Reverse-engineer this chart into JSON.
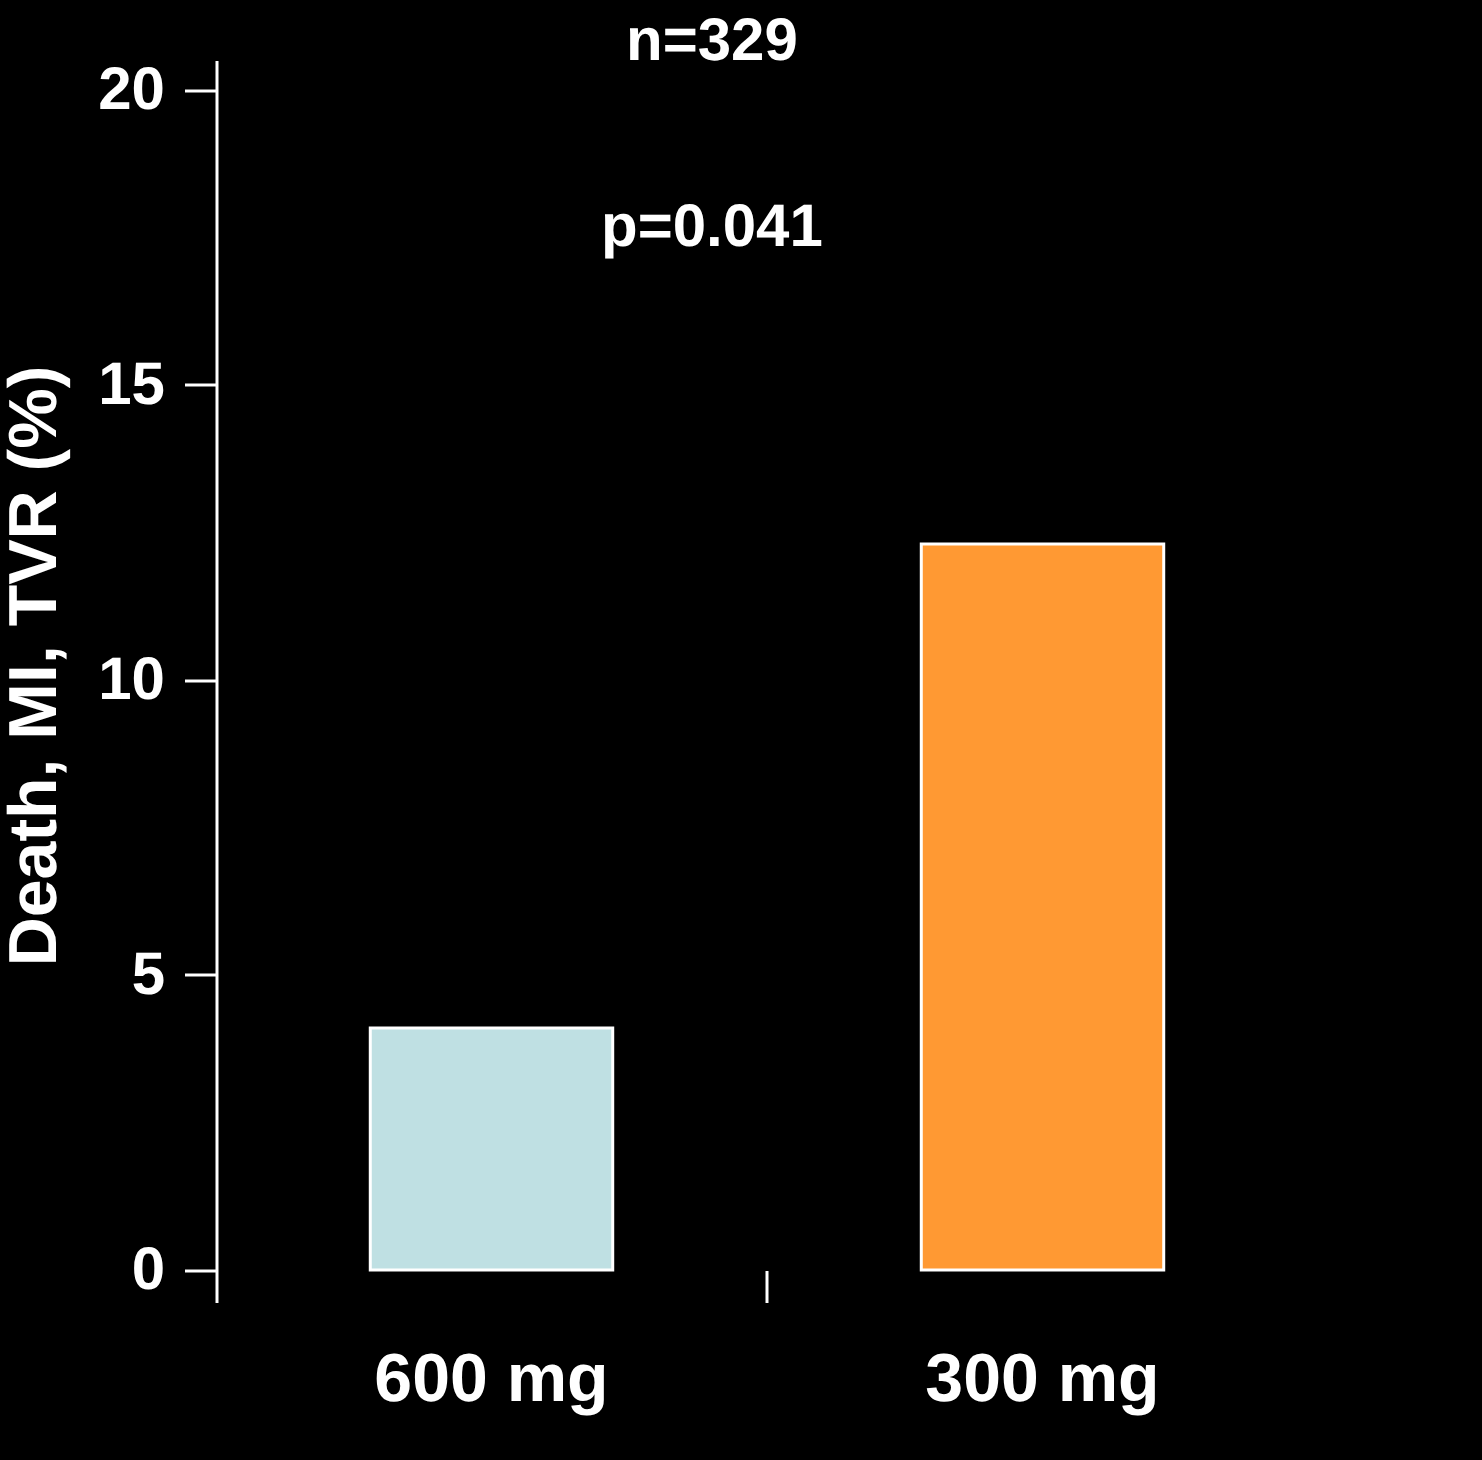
{
  "chart_data": {
    "type": "bar",
    "ylabel": "Death, MI, TVR (%)",
    "categories": [
      "600 mg",
      "300 mg"
    ],
    "values": [
      4.1,
      12.3
    ],
    "colors": [
      "#bfe0e3",
      "#ff9933"
    ],
    "ylim": [
      0,
      20.5
    ],
    "yticks": [
      0,
      5,
      10,
      15,
      20
    ],
    "grid": false,
    "legend": false,
    "annotations": [
      "n=329",
      "p=0.041"
    ]
  }
}
